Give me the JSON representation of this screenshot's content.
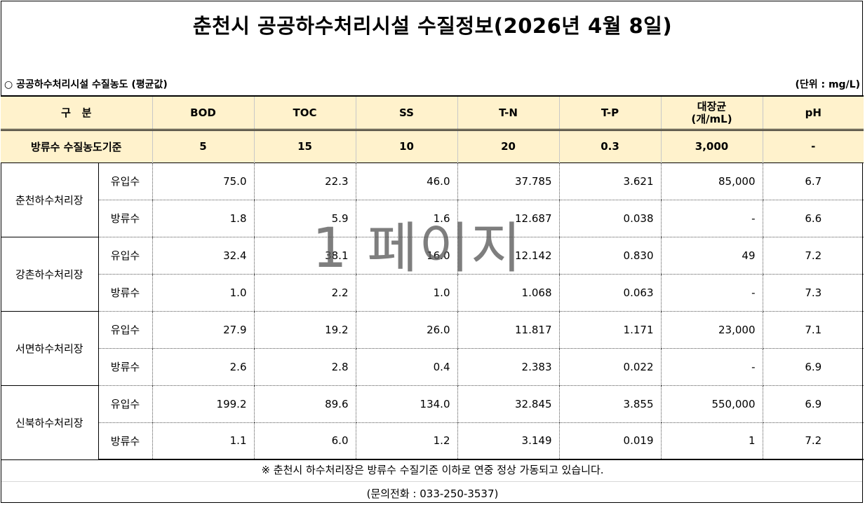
{
  "title": "춘천시 공공하수처리시설 수질정보(2026년 4월 8일)",
  "subtitle": "○ 공공하수처리시설 수질농도 (평균값)",
  "unit": "(단위 : mg/L)",
  "header": {
    "category": "구   분",
    "columns": [
      "BOD",
      "TOC",
      "SS",
      "T-N",
      "T-P",
      "대장균",
      "pH"
    ],
    "coliform_unit": "(개/mL)"
  },
  "standard": {
    "label": "방류수 수질농도기준",
    "values": [
      "5",
      "15",
      "10",
      "20",
      "0.3",
      "3,000",
      "-"
    ]
  },
  "plants": [
    {
      "name": "춘천하수처리장",
      "rows": [
        {
          "type": "유입수",
          "values": [
            "75.0",
            "22.3",
            "46.0",
            "37.785",
            "3.621",
            "85,000",
            "6.7"
          ]
        },
        {
          "type": "방류수",
          "values": [
            "1.8",
            "5.9",
            "1.6",
            "12.687",
            "0.038",
            "-",
            "6.6"
          ]
        }
      ]
    },
    {
      "name": "강촌하수처리장",
      "rows": [
        {
          "type": "유입수",
          "values": [
            "32.4",
            "38.1",
            "16.0",
            "12.142",
            "0.830",
            "49",
            "7.2"
          ]
        },
        {
          "type": "방류수",
          "values": [
            "1.0",
            "2.2",
            "1.0",
            "1.068",
            "0.063",
            "-",
            "7.3"
          ]
        }
      ]
    },
    {
      "name": "서면하수처리장",
      "rows": [
        {
          "type": "유입수",
          "values": [
            "27.9",
            "19.2",
            "26.0",
            "11.817",
            "1.171",
            "23,000",
            "7.1"
          ]
        },
        {
          "type": "방류수",
          "values": [
            "2.6",
            "2.8",
            "0.4",
            "2.383",
            "0.022",
            "-",
            "6.9"
          ]
        }
      ]
    },
    {
      "name": "신북하수처리장",
      "rows": [
        {
          "type": "유입수",
          "values": [
            "199.2",
            "89.6",
            "134.0",
            "32.845",
            "3.855",
            "550,000",
            "6.9"
          ]
        },
        {
          "type": "방류수",
          "values": [
            "1.1",
            "6.0",
            "1.2",
            "3.149",
            "0.019",
            "1",
            "7.2"
          ]
        }
      ]
    }
  ],
  "footnote": "※ 춘천시 하수처리장은 방류수 수질기준 이하로 연중 정상 가동되고 있습니다.",
  "contact": "(문의전화 : 033-250-3537)",
  "watermark": "1 페이지",
  "colors": {
    "header_bg": "#fff2cc",
    "watermark": "#5a5a5a"
  }
}
